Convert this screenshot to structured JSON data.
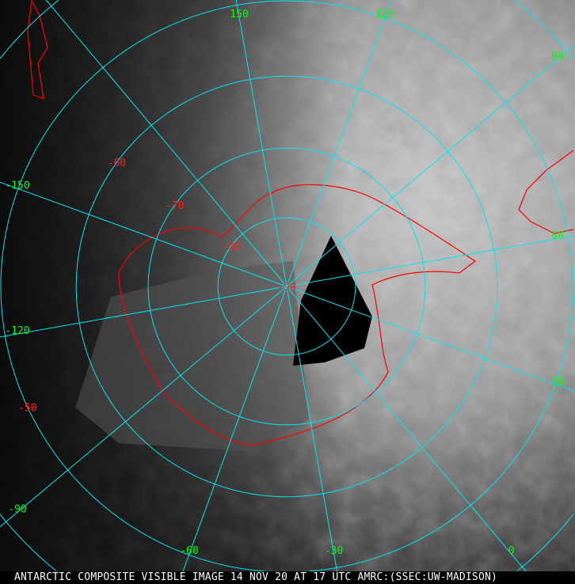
{
  "caption": "ANTARCTIC COMPOSITE VISIBLE IMAGE 14 NOV 20 AT 17 UTC AMRC:(SSEC:UW-MADISON)",
  "map": {
    "projection": "polar stereographic (south pole)",
    "pole_label": "-90",
    "latitude_circles": [
      -80,
      -70,
      -60,
      -50,
      -40
    ],
    "latitude_labels": [
      "-80",
      "-70",
      "-60",
      "-50"
    ],
    "longitude_lines": [
      150,
      120,
      90,
      60,
      30,
      0,
      -30,
      -60,
      -90,
      -120,
      -150,
      180
    ],
    "longitude_labels": [
      "150",
      "120",
      "90",
      "60",
      "30",
      "0",
      "-30",
      "-60",
      "-90",
      "-120",
      "-150"
    ],
    "colors": {
      "grid": "#00e5f0",
      "coastline": "#ff0000",
      "longitude_label": "#00ff00",
      "latitude_label": "#ff2020",
      "caption_text": "#ffffff"
    }
  }
}
